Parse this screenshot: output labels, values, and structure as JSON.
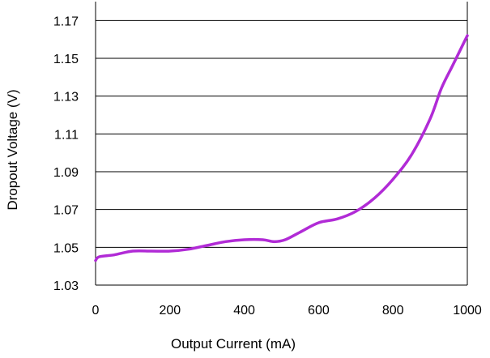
{
  "chart_data": {
    "type": "line",
    "title": "",
    "xlabel": "Output Current (mA)",
    "ylabel": "Dropout Voltage (V)",
    "xlim": [
      0,
      1000
    ],
    "ylim": [
      1.03,
      1.18
    ],
    "x_ticks": [
      "0",
      "200",
      "400",
      "600",
      "800",
      "1000"
    ],
    "y_ticks": [
      "1.03",
      "1.05",
      "1.07",
      "1.09",
      "1.11",
      "1.13",
      "1.15",
      "1.17"
    ],
    "grid": "horizontal",
    "colors": {
      "series": "#b12bd6",
      "grid": "#000000"
    },
    "series": [
      {
        "x": [
          0,
          10,
          50,
          100,
          150,
          200,
          250,
          300,
          350,
          400,
          450,
          480,
          510,
          550,
          600,
          650,
          700,
          750,
          800,
          850,
          900,
          930,
          960,
          990,
          1000
        ],
        "y": [
          1.043,
          1.045,
          1.046,
          1.048,
          1.048,
          1.048,
          1.049,
          1.051,
          1.053,
          1.054,
          1.054,
          1.053,
          1.054,
          1.058,
          1.063,
          1.065,
          1.069,
          1.076,
          1.086,
          1.099,
          1.118,
          1.134,
          1.146,
          1.158,
          1.162
        ]
      }
    ]
  }
}
